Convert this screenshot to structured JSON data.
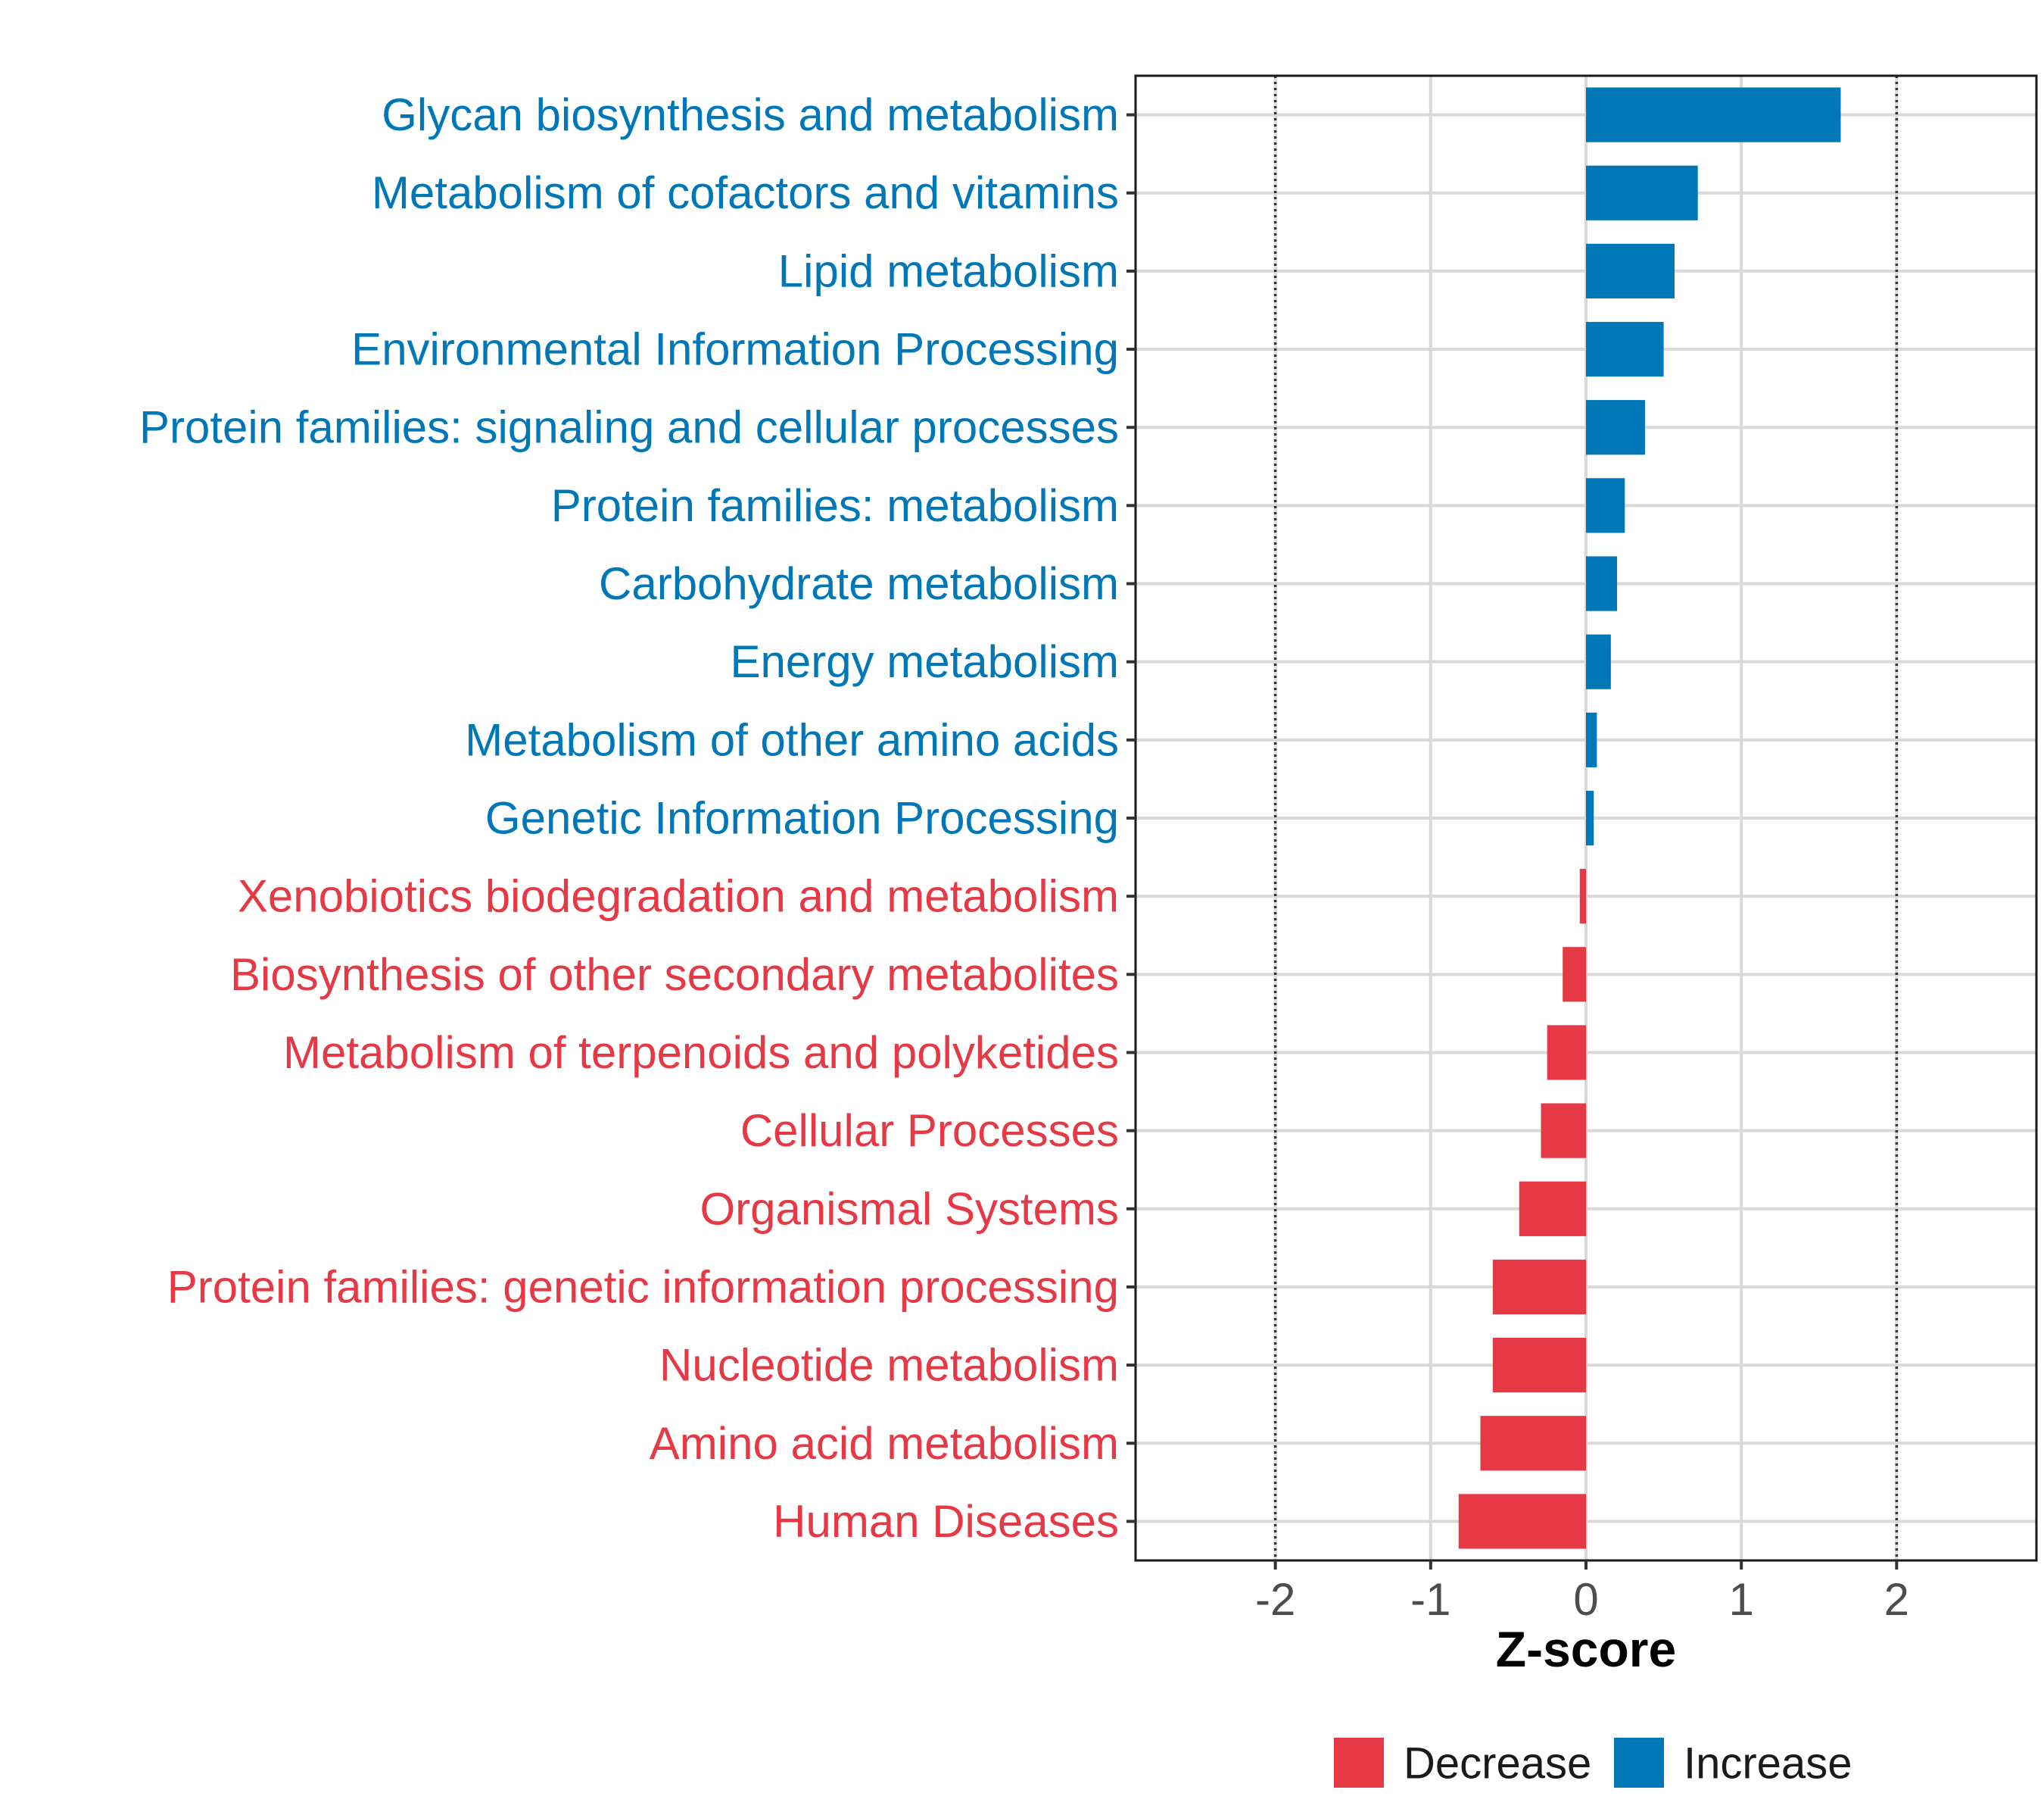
{
  "chart_data": {
    "type": "bar",
    "orientation": "horizontal",
    "xlabel": "Z-score",
    "ylabel": "",
    "xlim": [
      -2.9,
      2.9
    ],
    "xticks": [
      -2,
      -1,
      0,
      1,
      2
    ],
    "xtick_labels": [
      "-2",
      "-1",
      "0",
      "1",
      "2"
    ],
    "reference_lines": [
      -2,
      2
    ],
    "grid": true,
    "legend": {
      "placement": "bottom",
      "entries": [
        {
          "name": "Decrease",
          "color": "#E63946"
        },
        {
          "name": "Increase",
          "color": "#0077B6"
        }
      ]
    },
    "categories": [
      "Glycan biosynthesis and metabolism",
      "Metabolism of cofactors and vitamins",
      "Lipid metabolism",
      "Environmental Information Processing",
      "Protein families: signaling and cellular processes",
      "Protein families: metabolism",
      "Carbohydrate metabolism",
      "Energy metabolism",
      "Metabolism of other amino acids",
      "Genetic Information Processing",
      "Xenobiotics biodegradation and metabolism",
      "Biosynthesis of other secondary metabolites",
      "Metabolism of terpenoids and polyketides",
      "Cellular Processes",
      "Organismal Systems",
      "Protein families: genetic information processing",
      "Nucleotide metabolism",
      "Amino acid metabolism",
      "Human Diseases"
    ],
    "values": [
      1.64,
      0.72,
      0.57,
      0.5,
      0.38,
      0.25,
      0.2,
      0.16,
      0.07,
      0.05,
      -0.04,
      -0.15,
      -0.25,
      -0.29,
      -0.43,
      -0.6,
      -0.6,
      -0.68,
      -0.82
    ],
    "colors": {
      "Increase": "#0077B6",
      "Decrease": "#E63946"
    }
  }
}
